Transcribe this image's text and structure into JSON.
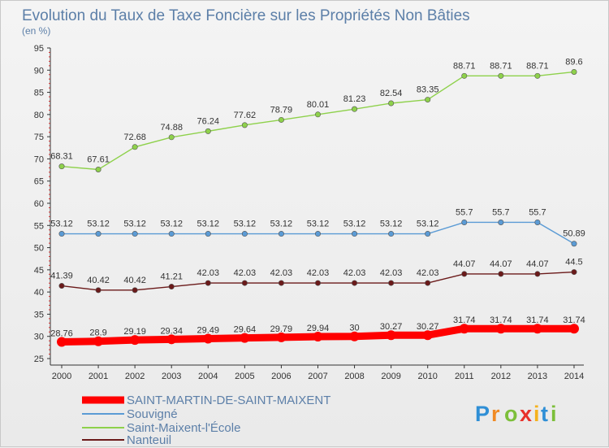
{
  "chart_data": {
    "type": "line",
    "title": "Evolution du Taux de Taxe Foncière sur les Propriétés Non Bâties",
    "subtitle": "(en %)",
    "x": [
      "2000",
      "2001",
      "2002",
      "2003",
      "2004",
      "2005",
      "2006",
      "2007",
      "2008",
      "2009",
      "2010",
      "2011",
      "2012",
      "2013",
      "2014"
    ],
    "ylim": [
      25,
      95
    ],
    "yticks": [
      25,
      30,
      35,
      40,
      45,
      50,
      55,
      60,
      65,
      70,
      75,
      80,
      85,
      90,
      95
    ],
    "grid": false,
    "legend": "bottom-left",
    "series": [
      {
        "name": "SAINT-MARTIN-DE-SAINT-MAIXENT",
        "color": "#ff0000",
        "values": [
          28.76,
          28.9,
          29.19,
          29.34,
          29.49,
          29.64,
          29.79,
          29.94,
          30,
          30.27,
          30.27,
          31.74,
          31.74,
          31.74,
          31.74
        ],
        "labels": [
          "28.76",
          "28.9",
          "29.19",
          "29.34",
          "29.49",
          "29.64",
          "29.79",
          "29.94",
          "30",
          "30.27",
          "30.27",
          "31.74",
          "31.74",
          "31.74",
          "31.74"
        ]
      },
      {
        "name": "Souvigné",
        "color": "#5b9bd5",
        "values": [
          53.12,
          53.12,
          53.12,
          53.12,
          53.12,
          53.12,
          53.12,
          53.12,
          53.12,
          53.12,
          53.12,
          55.7,
          55.7,
          55.7,
          50.89
        ],
        "labels": [
          "53.12",
          "53.12",
          "53.12",
          "53.12",
          "53.12",
          "53.12",
          "53.12",
          "53.12",
          "53.12",
          "53.12",
          "53.12",
          "55.7",
          "55.7",
          "55.7",
          "50.89"
        ]
      },
      {
        "name": "Saint-Maixent-l'École",
        "color": "#8ed14b",
        "values": [
          68.31,
          67.61,
          72.68,
          74.88,
          76.24,
          77.62,
          78.79,
          80.01,
          81.23,
          82.54,
          83.35,
          88.71,
          88.71,
          88.71,
          89.6
        ],
        "labels": [
          "68.31",
          "67.61",
          "72.68",
          "74.88",
          "76.24",
          "77.62",
          "78.79",
          "80.01",
          "81.23",
          "82.54",
          "83.35",
          "88.71",
          "88.71",
          "88.71",
          "89.6"
        ]
      },
      {
        "name": "Nanteuil",
        "color": "#6b1a1a",
        "values": [
          41.39,
          40.42,
          40.42,
          41.21,
          42.03,
          42.03,
          42.03,
          42.03,
          42.03,
          42.03,
          42.03,
          44.07,
          44.07,
          44.07,
          44.5
        ],
        "labels": [
          "41.39",
          "40.42",
          "40.42",
          "41.21",
          "42.03",
          "42.03",
          "42.03",
          "42.03",
          "42.03",
          "42.03",
          "42.03",
          "44.07",
          "44.07",
          "44.07",
          "44.5"
        ]
      }
    ]
  },
  "logo": {
    "letters": [
      "P",
      "r",
      "o",
      "x",
      "i",
      "t",
      "i"
    ],
    "colors": [
      "#2f8fd6",
      "#f08a24",
      "#7cbf3a",
      "#e8302a",
      "#f5b21e",
      "#2f8fd6",
      "#7cbf3a"
    ]
  }
}
